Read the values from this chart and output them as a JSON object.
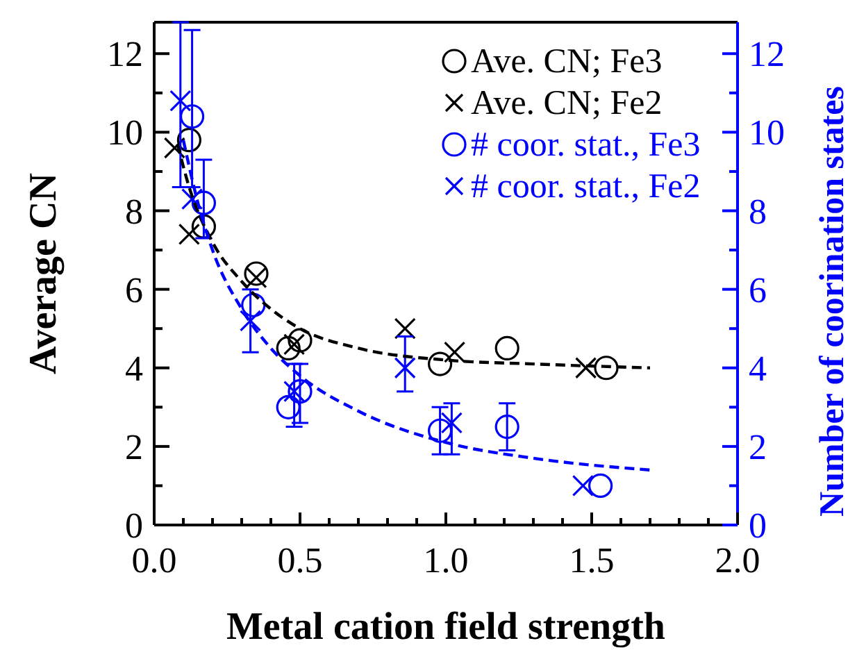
{
  "chart_data": {
    "type": "scatter",
    "xlabel": "Metal cation field strength",
    "ylabel": "Average CN",
    "y2label": "Number of coorination states",
    "xlim": [
      0,
      2
    ],
    "xticks": [
      {
        "value": 0,
        "label": "0.0"
      },
      {
        "value": 0.1,
        "label": null
      },
      {
        "value": 0.2,
        "label": null
      },
      {
        "value": 0.3,
        "label": null
      },
      {
        "value": 0.4,
        "label": null
      },
      {
        "value": 0.5,
        "label": "0.5"
      },
      {
        "value": 0.6,
        "label": null
      },
      {
        "value": 0.7,
        "label": null
      },
      {
        "value": 0.8,
        "label": null
      },
      {
        "value": 0.9,
        "label": null
      },
      {
        "value": 1,
        "label": "1.0"
      },
      {
        "value": 1.1,
        "label": null
      },
      {
        "value": 1.2,
        "label": null
      },
      {
        "value": 1.3,
        "label": null
      },
      {
        "value": 1.4,
        "label": null
      },
      {
        "value": 1.5,
        "label": "1.5"
      },
      {
        "value": 1.6,
        "label": null
      },
      {
        "value": 1.7,
        "label": null
      },
      {
        "value": 1.8,
        "label": null
      },
      {
        "value": 1.9,
        "label": null
      },
      {
        "value": 2,
        "label": "2.0"
      }
    ],
    "ylim": [
      0,
      12.8
    ],
    "yticks": [
      0,
      {
        "value": 1,
        "label": null
      },
      2,
      {
        "value": 3,
        "label": null
      },
      4,
      {
        "value": 5,
        "label": null
      },
      6,
      {
        "value": 7,
        "label": null
      },
      8,
      {
        "value": 9,
        "label": null
      },
      10,
      {
        "value": 11,
        "label": null
      },
      12
    ],
    "y2lim": [
      0,
      12.8
    ],
    "y2ticks": [
      0,
      {
        "value": 1,
        "label": null
      },
      2,
      {
        "value": 3,
        "label": null
      },
      4,
      {
        "value": 5,
        "label": null
      },
      6,
      {
        "value": 7,
        "label": null
      },
      8,
      {
        "value": 9,
        "label": null
      },
      10,
      {
        "value": 11,
        "label": null
      },
      12
    ],
    "legend": "top right",
    "grid": false,
    "series": [
      {
        "name": "Ave. CN; Fe3",
        "color": "#000000",
        "marker": "circle",
        "x": [
          0.12,
          0.17,
          0.35,
          0.46,
          0.5,
          0.98,
          1.21,
          1.55
        ],
        "values": [
          9.8,
          7.6,
          6.4,
          4.5,
          4.7,
          4.1,
          4.5,
          4.0
        ]
      },
      {
        "name": "Ave. CN; Fe2",
        "color": "#000000",
        "marker": "cross",
        "x": [
          0.07,
          0.12,
          0.35,
          0.48,
          0.86,
          1.03,
          1.48
        ],
        "values": [
          9.6,
          7.4,
          6.3,
          4.6,
          5.0,
          4.4,
          4.0
        ]
      },
      {
        "name": "# coor. stat., Fe3",
        "color": "#0000ff",
        "marker": "circle",
        "axis": "y2",
        "x": [
          0.13,
          0.17,
          0.34,
          0.46,
          0.5,
          0.98,
          1.21,
          1.53
        ],
        "values": [
          10.4,
          8.2,
          5.6,
          3.0,
          3.4,
          2.4,
          2.5,
          1.0
        ],
        "errors": [
          [
            8.6,
            12.6
          ],
          [
            7.3,
            9.3
          ],
          null,
          null,
          [
            2.6,
            4.1
          ],
          [
            1.8,
            3.0
          ],
          [
            1.9,
            3.1
          ],
          null
        ]
      },
      {
        "name": "# coor. stat., Fe2",
        "color": "#0000ff",
        "marker": "cross",
        "axis": "y2",
        "x": [
          0.09,
          0.13,
          0.33,
          0.48,
          0.86,
          1.02,
          1.47
        ],
        "values": [
          10.8,
          8.3,
          5.2,
          3.4,
          4.0,
          2.6,
          1.0
        ],
        "errors": [
          [
            8.6,
            12.8
          ],
          null,
          [
            4.4,
            6.0
          ],
          [
            2.5,
            4.1
          ],
          [
            3.4,
            4.8
          ],
          [
            1.8,
            3.1
          ],
          null
        ]
      },
      {
        "type": "line",
        "color": "#000000",
        "line_style": "dashed",
        "marker": "none",
        "x": [
          0.08,
          0.12,
          0.2,
          0.3,
          0.4,
          0.5,
          0.7,
          1.0,
          1.3,
          1.7
        ],
        "values": [
          9.7,
          8.6,
          7.2,
          6.2,
          5.5,
          5.0,
          4.5,
          4.2,
          4.1,
          4.0
        ]
      },
      {
        "type": "line",
        "color": "#0000ff",
        "line_style": "dashed",
        "marker": "none",
        "axis": "y2",
        "x": [
          0.1,
          0.15,
          0.2,
          0.3,
          0.4,
          0.5,
          0.7,
          1.0,
          1.3,
          1.7
        ],
        "values": [
          9.8,
          8.2,
          7.0,
          5.5,
          4.5,
          3.8,
          2.9,
          2.1,
          1.7,
          1.4
        ]
      }
    ]
  }
}
